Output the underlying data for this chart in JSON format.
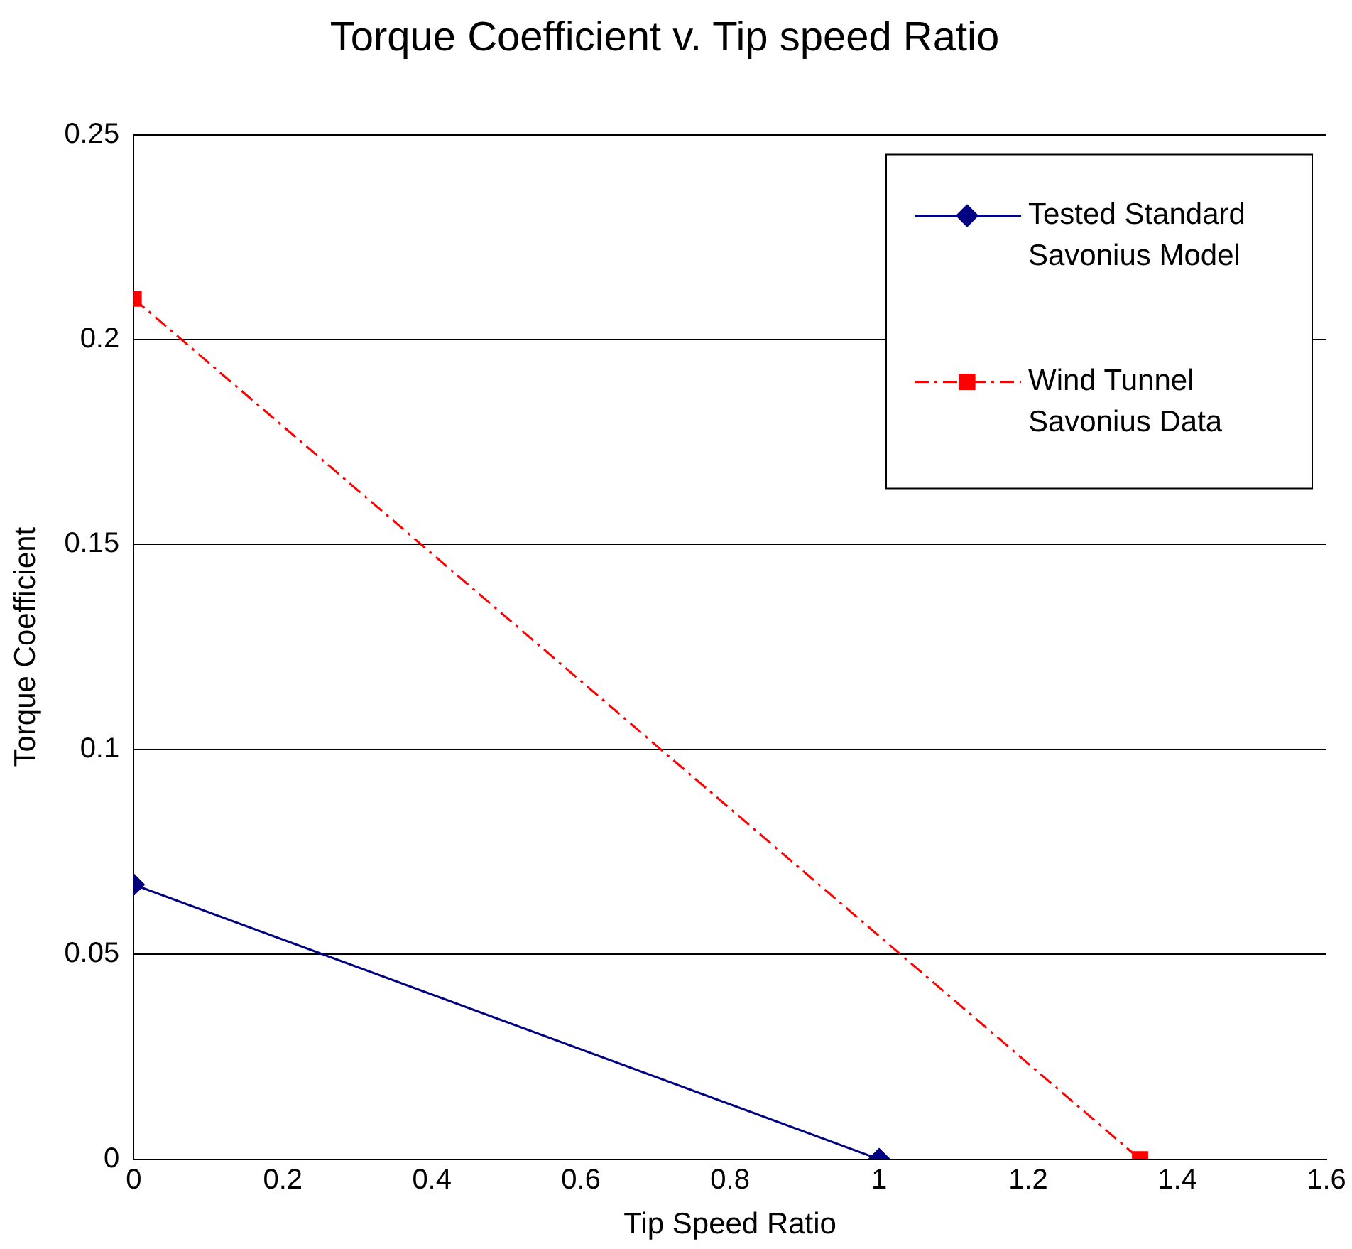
{
  "chart_data": {
    "type": "line",
    "title": "Torque Coefficient v. Tip speed Ratio",
    "xlabel": "Tip Speed Ratio",
    "ylabel": "Torque Coefficient",
    "series": [
      {
        "name": "Tested Standard Savonius Model",
        "color": "#000080",
        "x": [
          0,
          1
        ],
        "values": [
          0.067,
          0
        ],
        "marker": "diamond",
        "line_style": "solid"
      },
      {
        "name": "Wind Tunnel Savonius Data",
        "color": "#ff0000",
        "x": [
          0,
          1.35
        ],
        "values": [
          0.21,
          0
        ],
        "marker": "square",
        "line_style": "dashed"
      }
    ],
    "xlim": [
      0,
      1.6
    ],
    "xticks": [
      0,
      0.2,
      0.4,
      0.6,
      0.8,
      1,
      1.2,
      1.4,
      1.6
    ],
    "ylim": [
      0,
      0.25
    ],
    "yticks": [
      0,
      0.05,
      0.1,
      0.15,
      0.2,
      0.25
    ],
    "grid": "y",
    "legend": "top right"
  }
}
